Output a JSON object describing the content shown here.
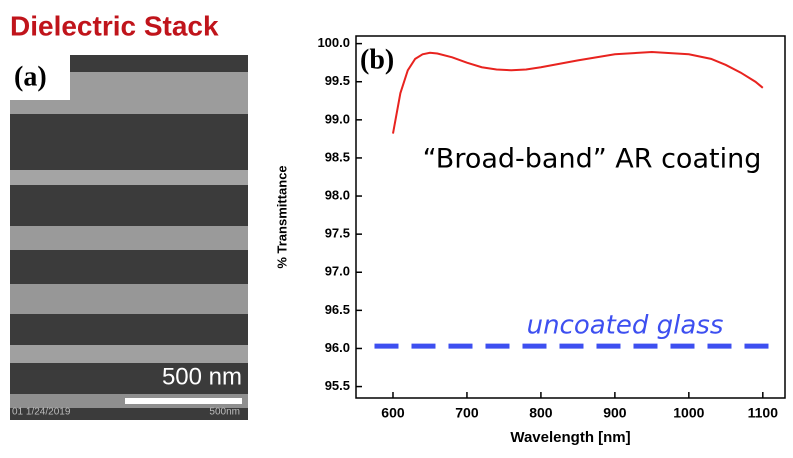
{
  "heading": "Dielectric Stack",
  "image_panel": {
    "label": "(a)",
    "scale_bar": "500 nm",
    "footer": [
      "01 1/24/2019",
      "500nm"
    ]
  },
  "chart_data": {
    "type": "line",
    "panel_label": "(b)",
    "x_label": "Wavelength [nm]",
    "y_label": "% Transmittance",
    "xlim": [
      550,
      1130
    ],
    "xticks": [
      600,
      700,
      800,
      900,
      1000,
      1100
    ],
    "ylim": [
      95.35,
      100.1
    ],
    "yticks": [
      95.5,
      {
        "value": 96,
        "label": "96.0"
      },
      96.5,
      {
        "value": 97,
        "label": "97.0"
      },
      97.5,
      {
        "value": 98,
        "label": "98.0"
      },
      98.5,
      {
        "value": 99,
        "label": "99.0"
      },
      99.5,
      {
        "value": 100,
        "label": "100.0"
      }
    ],
    "series": [
      {
        "name": "“Broad-band” AR coating",
        "color": "#e8231f",
        "dash": false,
        "x": [
          600,
          610,
          620,
          630,
          640,
          650,
          660,
          680,
          700,
          720,
          740,
          760,
          780,
          800,
          850,
          900,
          950,
          1000,
          1030,
          1050,
          1070,
          1090,
          1100
        ],
        "values": [
          98.82,
          99.35,
          99.65,
          99.8,
          99.86,
          99.88,
          99.87,
          99.82,
          99.75,
          99.69,
          99.66,
          99.65,
          99.66,
          99.69,
          99.78,
          99.86,
          99.89,
          99.86,
          99.8,
          99.72,
          99.62,
          99.5,
          99.42
        ]
      },
      {
        "name": "uncoated glass",
        "color": "#3d4ff0",
        "dash": true,
        "x": [
          575,
          1120
        ],
        "values": [
          96.03,
          96.03
        ]
      }
    ]
  }
}
